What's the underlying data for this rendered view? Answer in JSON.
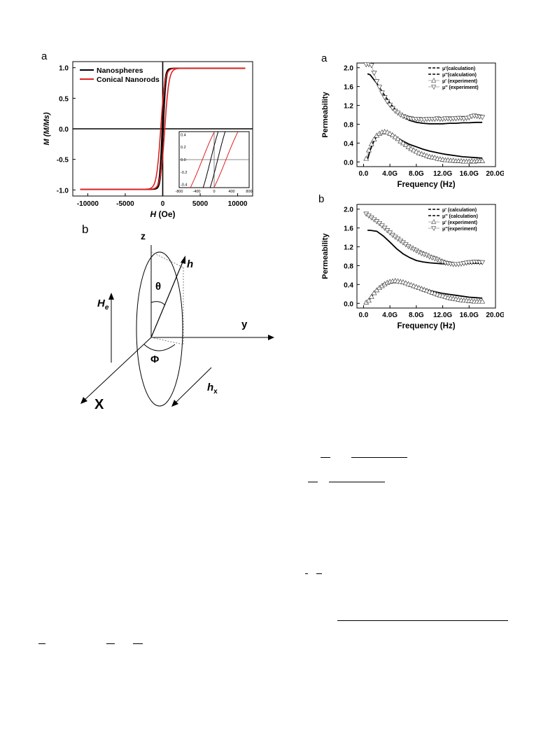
{
  "panels": {
    "left_top_letter": "a",
    "left_bottom_letter": "b",
    "right_top_letter": "a",
    "right_bottom_letter": "b"
  },
  "diagram": {
    "z": "z",
    "y": "y",
    "x": "X",
    "h": "h",
    "hx_main": "h",
    "hx_sub": "x",
    "He_main": "H",
    "He_sub": "e",
    "theta": "θ",
    "phi": "Φ"
  },
  "chart_data": [
    {
      "id": "hysteresis",
      "type": "line",
      "xlabel_italic": "H",
      "xlabel_rest": " (Oe)",
      "ylabel": "M (M/Ms)",
      "xlim": [
        -12000,
        12000
      ],
      "ylim": [
        -1.1,
        1.1
      ],
      "xticks": [
        -10000,
        -5000,
        0,
        5000,
        10000
      ],
      "xtick_labels": [
        "-10000",
        "-5000",
        "0",
        "5000",
        "10000"
      ],
      "yticks": [
        -1.0,
        -0.5,
        0.0,
        0.5,
        1.0
      ],
      "ytick_labels": [
        "-1.0",
        "-0.5",
        "0.0",
        "0.5",
        "1.0"
      ],
      "legend_position": "top-left",
      "series": [
        {
          "name": "Nanospheres",
          "color": "#000000",
          "ms_scale": 350,
          "hc": 80
        },
        {
          "name": "Conical Nanorods",
          "color": "#e02020",
          "ms_scale": 560,
          "hc": 270
        }
      ],
      "inset": {
        "xlim": [
          -800,
          800
        ],
        "ylim": [
          -0.45,
          0.45
        ],
        "xticks": [
          -800,
          -400,
          0,
          400,
          800
        ],
        "xtick_labels": [
          "-800",
          "-400",
          "0",
          "400",
          "800"
        ],
        "yticks": [
          -0.4,
          -0.2,
          0.0,
          0.2,
          0.4
        ],
        "ytick_labels": [
          "-0.4",
          "-0.2",
          "0.0",
          "0.2",
          "0.4"
        ]
      }
    },
    {
      "id": "perm_a",
      "type": "line",
      "xlabel": "Frequency (Hz)",
      "ylabel": "Permeability",
      "xlim": [
        -1,
        20
      ],
      "ylim": [
        -0.1,
        2.1
      ],
      "xticks": [
        0,
        4,
        8,
        12,
        16,
        20
      ],
      "xtick_labels": [
        "0.0",
        "4.0G",
        "8.0G",
        "12.0G",
        "16.0G",
        "20.0G"
      ],
      "yticks": [
        0.0,
        0.4,
        0.8,
        1.2,
        1.6,
        2.0
      ],
      "ytick_labels": [
        "0.0",
        "0.4",
        "0.8",
        "1.2",
        "1.6",
        "2.0"
      ],
      "legend_position": "top-right",
      "legend": [
        "μ'(calculation)",
        "μ''(calculation)",
        "μ' (experiment)",
        "μ'' (experiment)"
      ],
      "calc_real": {
        "x": [
          0.6,
          1,
          2,
          3,
          4,
          5,
          6,
          7,
          8,
          9,
          10,
          11,
          12,
          13,
          14,
          15,
          16,
          17,
          18
        ],
        "y": [
          1.87,
          1.85,
          1.67,
          1.45,
          1.25,
          1.08,
          0.96,
          0.88,
          0.84,
          0.82,
          0.81,
          0.81,
          0.81,
          0.82,
          0.82,
          0.83,
          0.83,
          0.84,
          0.84
        ]
      },
      "calc_imag": {
        "x": [
          0.6,
          1,
          1.5,
          2,
          2.5,
          3,
          3.5,
          4,
          5,
          6,
          7,
          8,
          9,
          10,
          11,
          12,
          13,
          14,
          15,
          16,
          17,
          18
        ],
        "y": [
          0.05,
          0.25,
          0.42,
          0.55,
          0.61,
          0.63,
          0.62,
          0.6,
          0.52,
          0.44,
          0.37,
          0.32,
          0.27,
          0.23,
          0.2,
          0.17,
          0.15,
          0.13,
          0.11,
          0.1,
          0.09,
          0.08
        ]
      },
      "exp_real": {
        "x": [
          0.4,
          0.8,
          1.2,
          1.6,
          2,
          2.4,
          2.8,
          3.2,
          3.6,
          4,
          4.4,
          4.8,
          5.2,
          5.6,
          6,
          6.4,
          6.8,
          7.2,
          7.6,
          8,
          8.4,
          8.8,
          9.2,
          9.6,
          10,
          10.4,
          10.8,
          11.2,
          11.6,
          12,
          12.4,
          12.8,
          13.2,
          13.6,
          14,
          14.4,
          14.8,
          15.2,
          15.6,
          16,
          16.4,
          16.8,
          17.2,
          17.6,
          18
        ],
        "y": [
          2.07,
          2.07,
          2.05,
          1.89,
          1.71,
          1.59,
          1.47,
          1.37,
          1.28,
          1.21,
          1.14,
          1.08,
          1.04,
          1.0,
          0.97,
          0.95,
          0.93,
          0.92,
          0.91,
          0.91,
          0.91,
          0.9,
          0.9,
          0.91,
          0.91,
          0.91,
          0.91,
          0.92,
          0.91,
          0.91,
          0.92,
          0.92,
          0.91,
          0.92,
          0.92,
          0.93,
          0.93,
          0.92,
          0.93,
          0.94,
          0.97,
          0.98,
          0.97,
          0.96,
          0.95
        ]
      },
      "exp_imag": {
        "x": [
          0.4,
          0.8,
          1.2,
          1.6,
          2,
          2.4,
          2.8,
          3.2,
          3.6,
          4,
          4.4,
          4.8,
          5.2,
          5.6,
          6,
          6.4,
          6.8,
          7.2,
          7.6,
          8,
          8.4,
          8.8,
          9.2,
          9.6,
          10,
          10.4,
          10.8,
          11.2,
          11.6,
          12,
          12.4,
          12.8,
          13.2,
          13.6,
          14,
          14.4,
          14.8,
          15.2,
          15.6,
          16,
          16.4,
          16.8,
          17.2,
          17.6,
          18
        ],
        "y": [
          0.07,
          0.25,
          0.38,
          0.48,
          0.56,
          0.6,
          0.63,
          0.64,
          0.63,
          0.6,
          0.57,
          0.53,
          0.49,
          0.44,
          0.4,
          0.36,
          0.32,
          0.28,
          0.25,
          0.22,
          0.19,
          0.17,
          0.15,
          0.13,
          0.11,
          0.1,
          0.09,
          0.07,
          0.06,
          0.05,
          0.04,
          0.04,
          0.03,
          0.03,
          0.02,
          0.02,
          0.02,
          0.01,
          0.01,
          0.01,
          0.02,
          0.01,
          0.02,
          0.02,
          0.02
        ]
      }
    },
    {
      "id": "perm_b",
      "type": "line",
      "xlabel": "Frequency (Hz)",
      "ylabel": "Permeability",
      "xlim": [
        -1,
        20
      ],
      "ylim": [
        -0.1,
        2.1
      ],
      "xticks": [
        0,
        4,
        8,
        12,
        16,
        20
      ],
      "xtick_labels": [
        "0.0",
        "4.0G",
        "8.0G",
        "12.0G",
        "16.0G",
        "20.0G"
      ],
      "yticks": [
        0.0,
        0.4,
        0.8,
        1.2,
        1.6,
        2.0
      ],
      "ytick_labels": [
        "0.0",
        "0.4",
        "0.8",
        "1.2",
        "1.6",
        "2.0"
      ],
      "legend_position": "top-right",
      "legend": [
        "μ' (calculation)",
        "μ'' (calculation)",
        "μ' (experiment)",
        "μ''(experiment)"
      ],
      "calc_real": {
        "x": [
          0.6,
          1,
          2,
          3,
          4,
          5,
          6,
          7,
          8,
          9,
          10,
          11,
          12,
          13,
          14,
          15,
          16,
          17,
          18
        ],
        "y": [
          1.55,
          1.55,
          1.53,
          1.43,
          1.3,
          1.16,
          1.05,
          0.97,
          0.91,
          0.88,
          0.86,
          0.85,
          0.84,
          0.84,
          0.84,
          0.84,
          0.85,
          0.85,
          0.85
        ]
      },
      "calc_imag": {
        "x": [
          0.6,
          1,
          1.5,
          2,
          3,
          4,
          5,
          6,
          7,
          8,
          9,
          10,
          11,
          12,
          13,
          14,
          15,
          16,
          17,
          18
        ],
        "y": [
          0.02,
          0.1,
          0.2,
          0.29,
          0.41,
          0.46,
          0.46,
          0.43,
          0.39,
          0.35,
          0.31,
          0.27,
          0.24,
          0.21,
          0.19,
          0.17,
          0.15,
          0.13,
          0.12,
          0.11
        ]
      },
      "exp_real": {
        "x": [
          0.4,
          0.8,
          1.2,
          1.6,
          2,
          2.4,
          2.8,
          3.2,
          3.6,
          4,
          4.4,
          4.8,
          5.2,
          5.6,
          6,
          6.4,
          6.8,
          7.2,
          7.6,
          8,
          8.4,
          8.8,
          9.2,
          9.6,
          10,
          10.4,
          10.8,
          11.2,
          11.6,
          12,
          12.4,
          12.8,
          13.2,
          13.6,
          14,
          14.4,
          14.8,
          15.2,
          15.6,
          16,
          16.4,
          16.8,
          17.2,
          17.6,
          18
        ],
        "y": [
          1.9,
          1.86,
          1.82,
          1.78,
          1.74,
          1.7,
          1.65,
          1.6,
          1.55,
          1.5,
          1.45,
          1.41,
          1.37,
          1.33,
          1.29,
          1.25,
          1.21,
          1.18,
          1.15,
          1.12,
          1.09,
          1.06,
          1.04,
          1.02,
          0.99,
          0.97,
          0.95,
          0.93,
          0.9,
          0.88,
          0.86,
          0.85,
          0.84,
          0.83,
          0.83,
          0.83,
          0.84,
          0.85,
          0.86,
          0.87,
          0.87,
          0.88,
          0.88,
          0.87,
          0.87
        ]
      },
      "exp_imag": {
        "x": [
          0.4,
          0.8,
          1.2,
          1.6,
          2,
          2.4,
          2.8,
          3.2,
          3.6,
          4,
          4.4,
          4.8,
          5.2,
          5.6,
          6,
          6.4,
          6.8,
          7.2,
          7.6,
          8,
          8.4,
          8.8,
          9.2,
          9.6,
          10,
          10.4,
          10.8,
          11.2,
          11.6,
          12,
          12.4,
          12.8,
          13.2,
          13.6,
          14,
          14.4,
          14.8,
          15.2,
          15.6,
          16,
          16.4,
          16.8,
          17.2,
          17.6,
          18
        ],
        "y": [
          0.02,
          0.06,
          0.14,
          0.22,
          0.28,
          0.33,
          0.37,
          0.41,
          0.44,
          0.46,
          0.47,
          0.48,
          0.47,
          0.46,
          0.45,
          0.43,
          0.41,
          0.39,
          0.37,
          0.35,
          0.33,
          0.31,
          0.29,
          0.27,
          0.25,
          0.23,
          0.21,
          0.19,
          0.17,
          0.16,
          0.14,
          0.12,
          0.11,
          0.1,
          0.09,
          0.08,
          0.07,
          0.06,
          0.06,
          0.05,
          0.05,
          0.04,
          0.04,
          0.04,
          0.04
        ]
      }
    }
  ]
}
